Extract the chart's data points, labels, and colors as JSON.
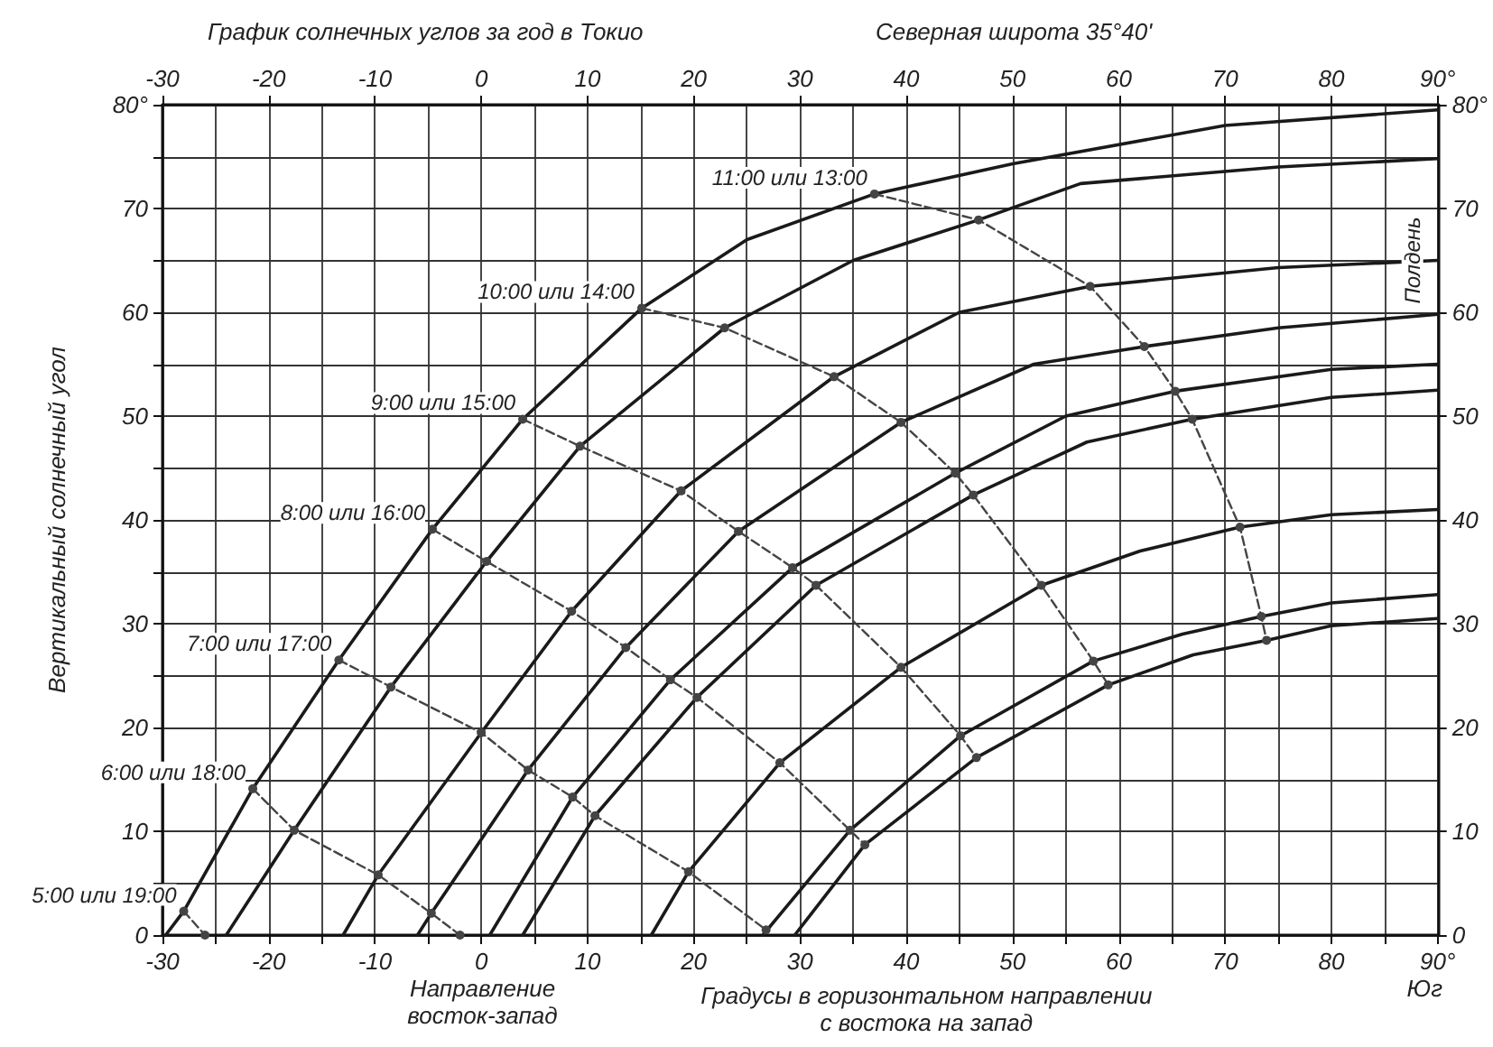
{
  "chart_data": {
    "type": "line",
    "title": "График солнечных углов за год в Токио",
    "subtitle": "Северная широта 35°40'",
    "xlabel": "Градусы в горизонтальном направлении\nс востока на запад",
    "ylabel": "Вертикальный солнечный угол",
    "xlim": [
      -30,
      90
    ],
    "xticks": [
      -30,
      {
        "value": -25,
        "label": null
      },
      -20,
      {
        "value": -15,
        "label": null
      },
      -10,
      {
        "value": -5,
        "label": null
      },
      0,
      {
        "value": 5,
        "label": null
      },
      10,
      {
        "value": 15,
        "label": null
      },
      20,
      {
        "value": 25,
        "label": null
      },
      30,
      {
        "value": 35,
        "label": null
      },
      40,
      {
        "value": 45,
        "label": null
      },
      50,
      {
        "value": 55,
        "label": null
      },
      60,
      {
        "value": 65,
        "label": null
      },
      70,
      {
        "value": 75,
        "label": null
      },
      80,
      {
        "value": 85,
        "label": null
      },
      {
        "value": 90,
        "label": "90°"
      }
    ],
    "x2lim": [
      -30,
      90
    ],
    "x2ticks": [
      -30,
      -20,
      -10,
      0,
      10,
      20,
      30,
      40,
      50,
      60,
      70,
      80,
      {
        "value": 90,
        "label": "90°"
      }
    ],
    "ylim": [
      0,
      80
    ],
    "yticks": [
      0,
      {
        "value": 5,
        "label": null
      },
      10,
      {
        "value": 15,
        "label": null
      },
      20,
      {
        "value": 25,
        "label": null
      },
      30,
      {
        "value": 35,
        "label": null
      },
      40,
      {
        "value": 45,
        "label": null
      },
      50,
      {
        "value": 55,
        "label": null
      },
      60,
      {
        "value": 65,
        "label": null
      },
      70,
      {
        "value": 75,
        "label": null
      },
      {
        "value": 80,
        "label": "80°"
      }
    ],
    "y2lim": [
      0,
      80
    ],
    "y2ticks": [
      0,
      10,
      20,
      30,
      40,
      50,
      60,
      70,
      {
        "value": 80,
        "label": "80°"
      }
    ],
    "grid": true,
    "series": [
      {
        "color": "#1a1a1a",
        "line_style": "solid",
        "marker": "none",
        "x": [
          -29.7,
          -28,
          -21.5,
          -13.4,
          -4.6,
          3.9,
          15.1,
          25,
          37,
          50,
          70,
          90
        ],
        "values": [
          0,
          2.3,
          14.1,
          26.5,
          39.1,
          49.7,
          60.4,
          67,
          71.4,
          74.3,
          78,
          79.5
        ]
      },
      {
        "color": "#1a1a1a",
        "line_style": "solid",
        "marker": "none",
        "x": [
          -24,
          -17.6,
          -8.5,
          0.5,
          9.3,
          22.9,
          35,
          46.8,
          56.4,
          75,
          90
        ],
        "values": [
          0,
          10.1,
          23.9,
          36,
          47.1,
          58.5,
          65,
          68.9,
          72.4,
          74,
          74.8
        ]
      },
      {
        "color": "#1a1a1a",
        "line_style": "solid",
        "marker": "none",
        "x": [
          -13,
          -9.7,
          0,
          8.5,
          18.8,
          33.2,
          45,
          57.3,
          75,
          90
        ],
        "values": [
          0,
          5.8,
          19.5,
          31.2,
          42.8,
          53.8,
          60,
          62.5,
          64.3,
          65
        ]
      },
      {
        "color": "#1a1a1a",
        "line_style": "solid",
        "marker": "none",
        "x": [
          -6,
          -4.7,
          4.4,
          13.6,
          24.2,
          39.5,
          52,
          62.4,
          75,
          90
        ],
        "values": [
          0,
          2.1,
          15.9,
          27.7,
          38.9,
          49.4,
          55,
          56.7,
          58.5,
          59.8
        ]
      },
      {
        "color": "#1a1a1a",
        "line_style": "solid",
        "marker": "none",
        "x": [
          0.8,
          8.6,
          17.8,
          29.3,
          44.6,
          55,
          65.3,
          80,
          90
        ],
        "values": [
          0,
          13.3,
          24.6,
          35.4,
          44.5,
          50,
          52.4,
          54.5,
          55
        ]
      },
      {
        "color": "#1a1a1a",
        "line_style": "solid",
        "marker": "none",
        "x": [
          3.9,
          10.7,
          20.3,
          31.5,
          46.3,
          57,
          66.9,
          80,
          90
        ],
        "values": [
          0,
          11.5,
          22.9,
          33.7,
          42.4,
          47.5,
          49.7,
          51.8,
          52.5
        ]
      },
      {
        "color": "#1a1a1a",
        "line_style": "solid",
        "marker": "none",
        "x": [
          16,
          19.5,
          28.1,
          39.5,
          52.7,
          62,
          71.4,
          80,
          90
        ],
        "values": [
          0,
          6.1,
          16.6,
          25.8,
          33.7,
          37,
          39.3,
          40.5,
          41
        ]
      },
      {
        "color": "#1a1a1a",
        "line_style": "solid",
        "marker": "none",
        "x": [
          26.5,
          34.7,
          45.1,
          57.6,
          66,
          73.4,
          80,
          90
        ],
        "values": [
          0,
          10.1,
          19.2,
          26.4,
          29,
          30.7,
          32,
          32.8
        ]
      },
      {
        "color": "#1a1a1a",
        "line_style": "solid",
        "marker": "none",
        "x": [
          29.5,
          36.1,
          46.6,
          59,
          67,
          73.9,
          80,
          90
        ],
        "values": [
          0,
          8.7,
          17.1,
          24.1,
          27,
          28.4,
          29.8,
          30.5
        ]
      },
      {
        "color": "#444444",
        "line_style": "dashed",
        "marker": "circle",
        "x": [
          -28,
          -26
        ],
        "values": [
          2.3,
          0
        ]
      },
      {
        "color": "#444444",
        "line_style": "dashed",
        "marker": "circle",
        "x": [
          -21.5,
          -17.6,
          -9.7,
          -4.7,
          -2
        ],
        "values": [
          14.1,
          10.1,
          5.8,
          2.1,
          0
        ]
      },
      {
        "color": "#444444",
        "line_style": "dashed",
        "marker": "circle",
        "x": [
          -13.4,
          -8.5,
          0,
          4.4,
          8.6,
          10.7,
          19.5,
          26.8
        ],
        "values": [
          26.5,
          23.9,
          19.5,
          15.9,
          13.3,
          11.5,
          6.1,
          0.5
        ]
      },
      {
        "color": "#444444",
        "line_style": "dashed",
        "marker": "circle",
        "x": [
          -4.6,
          0.5,
          8.5,
          13.6,
          17.8,
          20.3,
          28.1,
          34.7,
          36.1
        ],
        "values": [
          39.1,
          36,
          31.2,
          27.7,
          24.6,
          22.9,
          16.6,
          10.1,
          8.7
        ]
      },
      {
        "color": "#444444",
        "line_style": "dashed",
        "marker": "circle",
        "x": [
          3.9,
          9.3,
          18.8,
          24.2,
          29.3,
          31.5,
          39.5,
          45.1,
          46.6
        ],
        "values": [
          49.7,
          47.1,
          42.8,
          38.9,
          35.4,
          33.7,
          25.8,
          19.2,
          17.1
        ]
      },
      {
        "color": "#444444",
        "line_style": "dashed",
        "marker": "circle",
        "x": [
          15.1,
          22.9,
          33.2,
          39.5,
          44.6,
          46.3,
          52.7,
          57.6,
          59
        ],
        "values": [
          60.4,
          58.5,
          53.8,
          49.4,
          44.5,
          42.4,
          33.7,
          26.4,
          24.1
        ]
      },
      {
        "color": "#444444",
        "line_style": "dashed",
        "marker": "circle",
        "x": [
          37,
          46.8,
          57.3,
          62.4,
          65.3,
          66.9,
          71.4,
          73.4,
          73.9
        ],
        "values": [
          71.4,
          68.9,
          62.5,
          56.7,
          52.4,
          49.7,
          39.3,
          30.7,
          28.4
        ]
      }
    ],
    "annotations": [
      {
        "text": "5:00 или 19:00",
        "x": -28,
        "y": 2.3
      },
      {
        "text": "6:00 или 18:00",
        "x": -21.5,
        "y": 14.1
      },
      {
        "text": "7:00 или 17:00",
        "x": -13.4,
        "y": 26.5
      },
      {
        "text": "8:00 или 16:00",
        "x": -4.6,
        "y": 39.1
      },
      {
        "text": "9:00 или 15:00",
        "x": 3.9,
        "y": 49.7
      },
      {
        "text": "10:00 или 14:00",
        "x": 15.1,
        "y": 60.4
      },
      {
        "text": "11:00 или 13:00",
        "x": 37,
        "y": 71.4
      },
      {
        "text": "Полдень",
        "x": 90,
        "y": 65
      },
      "Направление\nвосток-запад",
      "Юг"
    ]
  }
}
